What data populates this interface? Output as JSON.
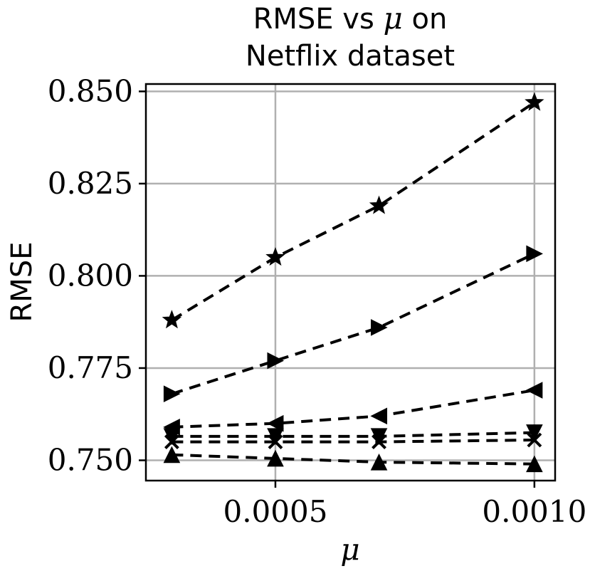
{
  "chart_data": {
    "type": "line",
    "title_line1_text": "RMSE vs ",
    "title_line1_math": "μ",
    "title_line1_suffix": " on",
    "title_line2": "Netflix dataset",
    "xlabel": "μ",
    "ylabel": "RMSE",
    "xlim": [
      0.00025,
      0.00104
    ],
    "ylim": [
      0.7445,
      0.852
    ],
    "xticks": [
      0.0005,
      0.001
    ],
    "xtick_labels": [
      "0.0005",
      "0.0010"
    ],
    "yticks": [
      0.75,
      0.775,
      0.8,
      0.825,
      0.85
    ],
    "ytick_labels": [
      "0.750",
      "0.775",
      "0.800",
      "0.825",
      "0.850"
    ],
    "grid": true,
    "line_style": "dashed",
    "color": "#000000",
    "x": [
      0.0003,
      0.0005,
      0.0007,
      0.001
    ],
    "series": [
      {
        "marker": "star",
        "values": [
          0.788,
          0.805,
          0.819,
          0.847
        ]
      },
      {
        "marker": "triangle-right",
        "values": [
          0.768,
          0.777,
          0.786,
          0.806
        ]
      },
      {
        "marker": "triangle-left",
        "values": [
          0.759,
          0.76,
          0.762,
          0.769
        ]
      },
      {
        "marker": "triangle-down",
        "values": [
          0.7565,
          0.7565,
          0.7565,
          0.7575
        ]
      },
      {
        "marker": "x",
        "values": [
          0.755,
          0.755,
          0.755,
          0.7555
        ]
      },
      {
        "marker": "triangle-up",
        "values": [
          0.7515,
          0.7505,
          0.7495,
          0.749
        ]
      }
    ]
  }
}
